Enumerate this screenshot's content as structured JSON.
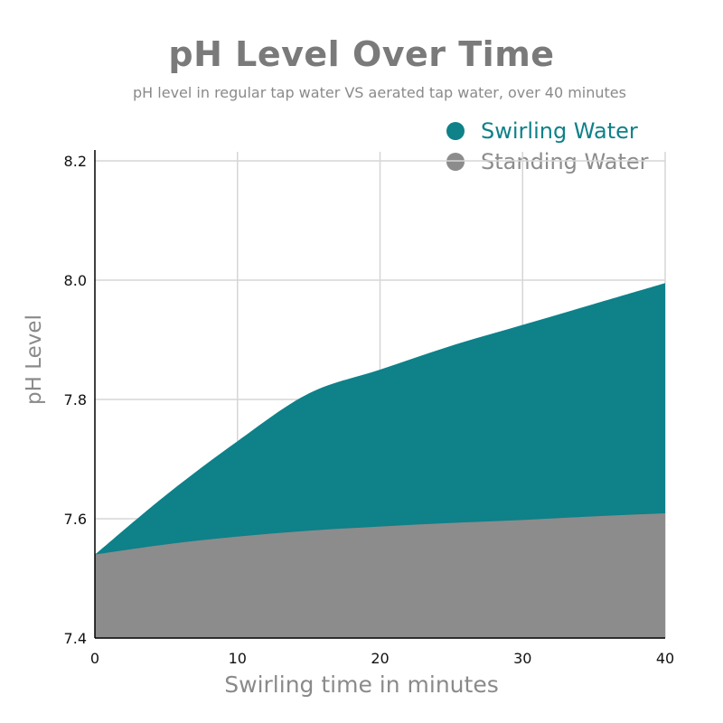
{
  "chart_data": {
    "type": "area",
    "title": "pH Level Over Time",
    "subtitle": "pH level in regular tap water VS aerated tap water, over 40 minutes",
    "xlabel": "Swirling time in minutes",
    "ylabel": "pH Level",
    "xlim": [
      0,
      40
    ],
    "ylim": [
      7.4,
      8.2
    ],
    "xticks": [
      0,
      10,
      20,
      30,
      40
    ],
    "yticks": [
      7.4,
      7.6,
      7.8,
      8.0,
      8.2
    ],
    "ytick_labels": [
      "7.4",
      "7.6",
      "7.8",
      "8.0",
      "8.2"
    ],
    "grid": true,
    "legend_position": "top-right",
    "x": [
      0,
      5,
      10,
      15,
      20,
      25,
      30,
      35,
      40
    ],
    "series": [
      {
        "name": "Swirling Water",
        "color": "#0e8189",
        "values": [
          7.54,
          7.64,
          7.73,
          7.81,
          7.85,
          7.89,
          7.925,
          7.96,
          7.995
        ]
      },
      {
        "name": "Standing Water",
        "color": "#8c8c8c",
        "values": [
          7.54,
          7.557,
          7.57,
          7.58,
          7.587,
          7.593,
          7.598,
          7.604,
          7.609
        ]
      }
    ]
  }
}
